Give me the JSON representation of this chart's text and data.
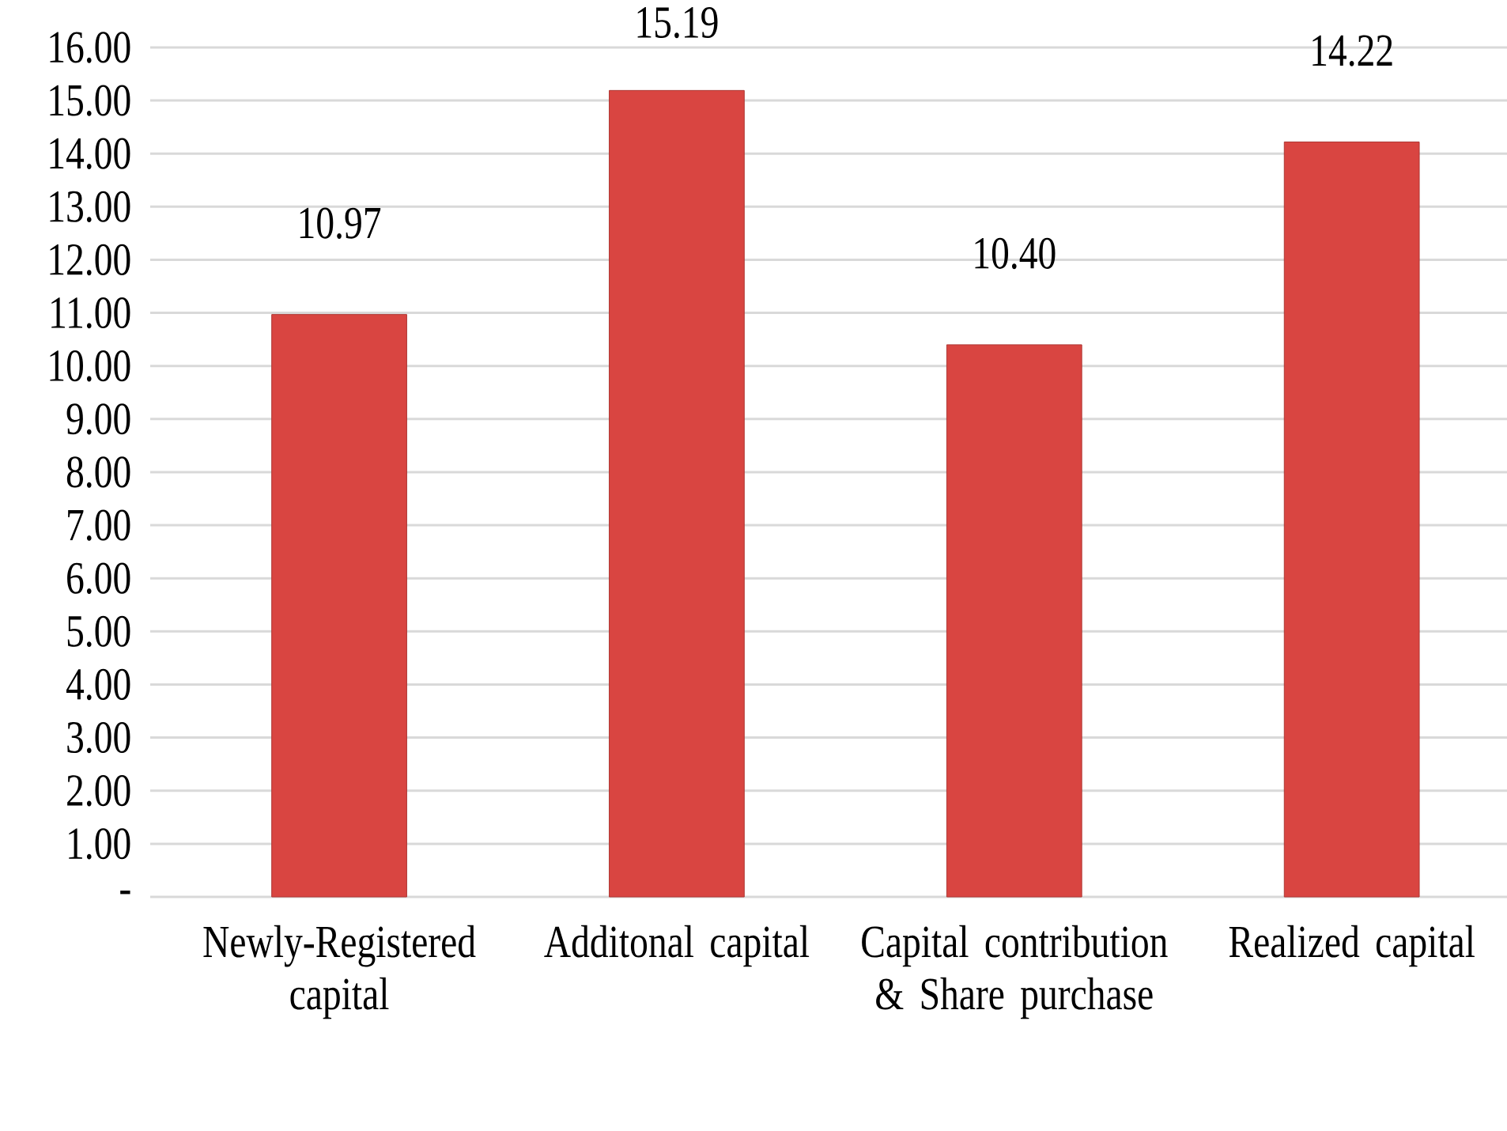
{
  "chart_data": {
    "type": "bar",
    "categories": [
      "Newly-Registered capital",
      "Additonal capital",
      "Capital contribution & Share purchase",
      "Realized capital"
    ],
    "values": [
      10.97,
      15.19,
      10.4,
      14.22
    ],
    "value_labels": [
      "10.97",
      "15.19",
      "10.40",
      "14.22"
    ],
    "color": "#d94541",
    "ylim": [
      0,
      16
    ],
    "yticks": [
      {
        "value": 0,
        "label": "-"
      },
      {
        "value": 1,
        "label": "1.00"
      },
      {
        "value": 2,
        "label": "2.00"
      },
      {
        "value": 3,
        "label": "3.00"
      },
      {
        "value": 4,
        "label": "4.00"
      },
      {
        "value": 5,
        "label": "5.00"
      },
      {
        "value": 6,
        "label": "6.00"
      },
      {
        "value": 7,
        "label": "7.00"
      },
      {
        "value": 8,
        "label": "8.00"
      },
      {
        "value": 9,
        "label": "9.00"
      },
      {
        "value": 10,
        "label": "10.00"
      },
      {
        "value": 11,
        "label": "11.00"
      },
      {
        "value": 12,
        "label": "12.00"
      },
      {
        "value": 13,
        "label": "13.00"
      },
      {
        "value": 14,
        "label": "14.00"
      },
      {
        "value": 15,
        "label": "15.00"
      },
      {
        "value": 16,
        "label": "16.00"
      }
    ],
    "grid": "y"
  }
}
